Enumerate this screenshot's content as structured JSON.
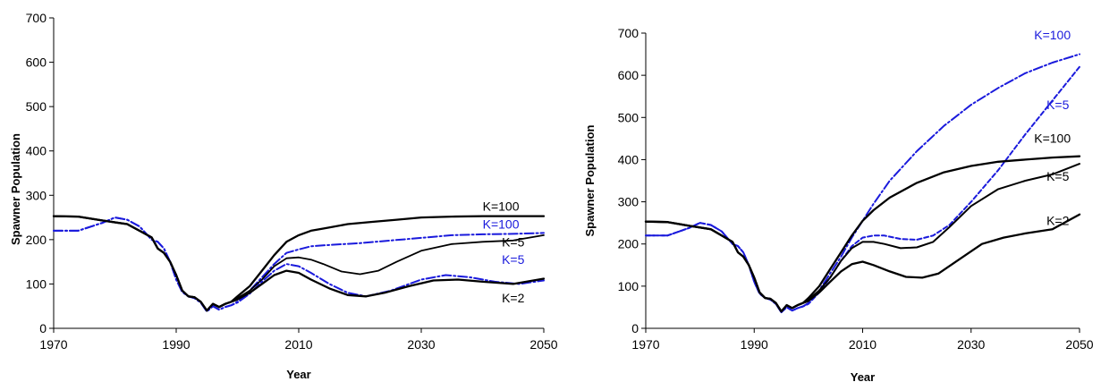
{
  "chart_data": [
    {
      "type": "line",
      "title": "",
      "xlabel": "Year",
      "ylabel": "Spawner Population",
      "xlim": [
        1970,
        2050
      ],
      "ylim": [
        0,
        700
      ],
      "xticks": [
        1970,
        1990,
        2010,
        2030,
        2050
      ],
      "yticks": [
        0,
        100,
        200,
        300,
        400,
        500,
        600,
        700
      ],
      "grid": false,
      "legend": "none",
      "series": [
        {
          "name": "K=100",
          "color": "#000000",
          "style": "solid",
          "width": 2.3,
          "x": [
            1970,
            1974,
            1978,
            1982,
            1984,
            1986,
            1987,
            1988,
            1989,
            1990,
            1991,
            1992,
            1993,
            1994,
            1995,
            1996,
            1997,
            1998,
            1999,
            2000,
            2002,
            2004,
            2006,
            2008,
            2010,
            2012,
            2014,
            2018,
            2022,
            2026,
            2030,
            2035,
            2040,
            2045,
            2050
          ],
          "y": [
            253,
            252,
            243,
            235,
            220,
            205,
            180,
            170,
            150,
            120,
            85,
            72,
            70,
            60,
            40,
            55,
            48,
            55,
            60,
            72,
            95,
            130,
            165,
            195,
            210,
            220,
            225,
            235,
            240,
            245,
            250,
            252,
            253,
            253,
            253
          ]
        },
        {
          "name": "K=100",
          "color": "#1a1adc",
          "style": "dashdot",
          "width": 2,
          "x": [
            1970,
            1974,
            1978,
            1980,
            1982,
            1984,
            1986,
            1987,
            1988,
            1989,
            1990,
            1991,
            1992,
            1993,
            1994,
            1995,
            1996,
            1997,
            1998,
            1999,
            2000,
            2002,
            2004,
            2006,
            2008,
            2010,
            2012,
            2015,
            2020,
            2025,
            2030,
            2035,
            2040,
            2045,
            2050
          ],
          "y": [
            220,
            220,
            238,
            250,
            245,
            230,
            200,
            195,
            180,
            150,
            110,
            82,
            72,
            68,
            58,
            38,
            50,
            42,
            48,
            52,
            60,
            85,
            115,
            145,
            170,
            178,
            185,
            188,
            192,
            198,
            204,
            210,
            212,
            213,
            215
          ]
        },
        {
          "name": "K=5",
          "color": "#000000",
          "style": "solid",
          "width": 1.8,
          "x": [
            1970,
            1974,
            1978,
            1982,
            1984,
            1986,
            1987,
            1988,
            1989,
            1990,
            1991,
            1992,
            1993,
            1994,
            1995,
            1996,
            1997,
            1998,
            1999,
            2000,
            2002,
            2004,
            2006,
            2008,
            2010,
            2012,
            2014,
            2017,
            2020,
            2023,
            2026,
            2030,
            2035,
            2040,
            2045,
            2050
          ],
          "y": [
            253,
            252,
            243,
            235,
            220,
            205,
            180,
            170,
            150,
            120,
            85,
            72,
            70,
            60,
            40,
            55,
            48,
            55,
            60,
            68,
            85,
            110,
            140,
            158,
            160,
            155,
            145,
            128,
            122,
            130,
            150,
            175,
            190,
            195,
            198,
            210
          ]
        },
        {
          "name": "K=5",
          "color": "#1a1adc",
          "style": "dashdot",
          "width": 2,
          "x": [
            1970,
            1974,
            1978,
            1980,
            1982,
            1984,
            1986,
            1987,
            1988,
            1989,
            1990,
            1991,
            1992,
            1993,
            1994,
            1995,
            1996,
            1997,
            1998,
            1999,
            2000,
            2002,
            2004,
            2006,
            2008,
            2010,
            2012,
            2015,
            2018,
            2021,
            2025,
            2030,
            2034,
            2038,
            2042,
            2046,
            2050
          ],
          "y": [
            220,
            220,
            238,
            250,
            245,
            230,
            200,
            195,
            180,
            150,
            110,
            82,
            72,
            68,
            58,
            38,
            50,
            42,
            48,
            52,
            58,
            78,
            105,
            130,
            145,
            140,
            125,
            100,
            80,
            72,
            85,
            110,
            120,
            115,
            105,
            100,
            108
          ]
        },
        {
          "name": "K=2",
          "color": "#000000",
          "style": "solid",
          "width": 2.3,
          "x": [
            1970,
            1974,
            1978,
            1982,
            1984,
            1986,
            1987,
            1988,
            1989,
            1990,
            1991,
            1992,
            1993,
            1994,
            1995,
            1996,
            1997,
            1998,
            1999,
            2000,
            2002,
            2004,
            2006,
            2008,
            2010,
            2012,
            2015,
            2018,
            2021,
            2024,
            2028,
            2032,
            2036,
            2040,
            2045,
            2050
          ],
          "y": [
            253,
            252,
            243,
            235,
            220,
            205,
            180,
            170,
            150,
            120,
            85,
            72,
            70,
            60,
            40,
            55,
            48,
            55,
            60,
            65,
            80,
            100,
            120,
            130,
            125,
            110,
            90,
            75,
            72,
            80,
            95,
            108,
            110,
            105,
            100,
            112
          ]
        }
      ],
      "annotations": [
        {
          "text": "K=100",
          "x": 2043,
          "y": 265,
          "color": "#000000"
        },
        {
          "text": "K=100",
          "x": 2043,
          "y": 225,
          "color": "#1a1adc"
        },
        {
          "text": "K=5",
          "x": 2045,
          "y": 185,
          "color": "#000000"
        },
        {
          "text": "K=5",
          "x": 2045,
          "y": 145,
          "color": "#1a1adc"
        },
        {
          "text": "K=2",
          "x": 2045,
          "y": 58,
          "color": "#000000"
        }
      ]
    },
    {
      "type": "line",
      "title": "",
      "xlabel": "Year",
      "ylabel": "Spawner Population",
      "xlim": [
        1970,
        2050
      ],
      "ylim": [
        0,
        700
      ],
      "xticks": [
        1970,
        1990,
        2010,
        2030,
        2050
      ],
      "yticks": [
        0,
        100,
        200,
        300,
        400,
        500,
        600,
        700
      ],
      "grid": false,
      "legend": "none",
      "series": [
        {
          "name": "K=100",
          "color": "#1a1adc",
          "style": "dashdot",
          "width": 2,
          "x": [
            1970,
            1974,
            1978,
            1980,
            1982,
            1984,
            1986,
            1987,
            1988,
            1989,
            1990,
            1991,
            1992,
            1993,
            1994,
            1995,
            1996,
            1997,
            1998,
            1999,
            2000,
            2002,
            2004,
            2006,
            2008,
            2010,
            2012,
            2015,
            2020,
            2025,
            2030,
            2035,
            2040,
            2045,
            2050
          ],
          "y": [
            220,
            220,
            238,
            250,
            245,
            230,
            200,
            195,
            180,
            150,
            110,
            82,
            72,
            68,
            58,
            38,
            50,
            42,
            48,
            52,
            60,
            90,
            130,
            170,
            215,
            255,
            295,
            350,
            420,
            480,
            530,
            570,
            605,
            630,
            650
          ]
        },
        {
          "name": "K=5",
          "color": "#1a1adc",
          "style": "dashed",
          "width": 2,
          "x": [
            1970,
            1974,
            1978,
            1980,
            1982,
            1984,
            1986,
            1987,
            1988,
            1989,
            1990,
            1991,
            1992,
            1993,
            1994,
            1995,
            1996,
            1997,
            1998,
            1999,
            2000,
            2002,
            2004,
            2006,
            2008,
            2010,
            2012,
            2014,
            2017,
            2020,
            2023,
            2026,
            2030,
            2035,
            2040,
            2045,
            2050
          ],
          "y": [
            220,
            220,
            238,
            250,
            245,
            230,
            200,
            195,
            180,
            150,
            110,
            82,
            72,
            68,
            58,
            38,
            50,
            42,
            48,
            52,
            58,
            85,
            120,
            160,
            195,
            215,
            220,
            220,
            212,
            210,
            220,
            245,
            300,
            375,
            460,
            540,
            620
          ]
        },
        {
          "name": "K=100",
          "color": "#000000",
          "style": "solid",
          "width": 2.3,
          "x": [
            1970,
            1974,
            1978,
            1982,
            1984,
            1986,
            1987,
            1988,
            1989,
            1990,
            1991,
            1992,
            1993,
            1994,
            1995,
            1996,
            1997,
            1998,
            1999,
            2000,
            2002,
            2004,
            2006,
            2008,
            2010,
            2012,
            2015,
            2020,
            2025,
            2030,
            2035,
            2040,
            2045,
            2050
          ],
          "y": [
            253,
            252,
            243,
            235,
            220,
            205,
            180,
            170,
            150,
            120,
            85,
            72,
            70,
            60,
            40,
            55,
            48,
            55,
            60,
            72,
            100,
            140,
            180,
            220,
            255,
            280,
            310,
            345,
            370,
            385,
            395,
            400,
            405,
            408
          ]
        },
        {
          "name": "K=5",
          "color": "#000000",
          "style": "solid",
          "width": 2,
          "x": [
            1970,
            1974,
            1978,
            1982,
            1984,
            1986,
            1987,
            1988,
            1989,
            1990,
            1991,
            1992,
            1993,
            1994,
            1995,
            1996,
            1997,
            1998,
            1999,
            2000,
            2002,
            2004,
            2006,
            2008,
            2010,
            2012,
            2014,
            2017,
            2020,
            2023,
            2026,
            2030,
            2035,
            2040,
            2045,
            2050
          ],
          "y": [
            253,
            252,
            243,
            235,
            220,
            205,
            180,
            170,
            150,
            120,
            85,
            72,
            70,
            60,
            40,
            55,
            48,
            55,
            60,
            68,
            90,
            120,
            160,
            190,
            205,
            205,
            200,
            190,
            192,
            205,
            240,
            290,
            330,
            350,
            365,
            390
          ]
        },
        {
          "name": "K=2",
          "color": "#000000",
          "style": "solid",
          "width": 2.3,
          "x": [
            1970,
            1974,
            1978,
            1982,
            1984,
            1986,
            1987,
            1988,
            1989,
            1990,
            1991,
            1992,
            1993,
            1994,
            1995,
            1996,
            1997,
            1998,
            1999,
            2000,
            2002,
            2004,
            2006,
            2008,
            2010,
            2012,
            2015,
            2018,
            2021,
            2024,
            2028,
            2032,
            2036,
            2040,
            2045,
            2050
          ],
          "y": [
            253,
            252,
            243,
            235,
            220,
            205,
            180,
            170,
            150,
            120,
            85,
            72,
            70,
            60,
            40,
            55,
            48,
            55,
            60,
            65,
            85,
            110,
            135,
            152,
            158,
            150,
            135,
            122,
            120,
            130,
            165,
            200,
            215,
            225,
            235,
            270
          ]
        }
      ],
      "annotations": [
        {
          "text": "K=100",
          "x": 2045,
          "y": 685,
          "color": "#1a1adc"
        },
        {
          "text": "K=5",
          "x": 2046,
          "y": 520,
          "color": "#1a1adc"
        },
        {
          "text": "K=100",
          "x": 2045,
          "y": 440,
          "color": "#000000"
        },
        {
          "text": "K=5",
          "x": 2046,
          "y": 350,
          "color": "#000000"
        },
        {
          "text": "K=2",
          "x": 2046,
          "y": 245,
          "color": "#000000"
        }
      ]
    }
  ]
}
